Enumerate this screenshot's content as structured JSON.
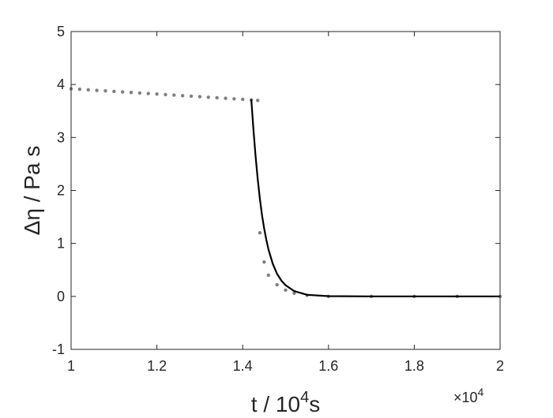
{
  "chart_data": {
    "type": "scatter",
    "xlim": [
      1,
      2
    ],
    "ylim": [
      -1,
      5
    ],
    "x_ticks": [
      "1",
      "1.2",
      "1.4",
      "1.6",
      "1.8",
      "2"
    ],
    "y_ticks": [
      "-1",
      "0",
      "1",
      "2",
      "3",
      "4",
      "5"
    ],
    "x_ticks_values": [
      1,
      1.2,
      1.4,
      1.6,
      1.8,
      2
    ],
    "y_ticks_values": [
      -1,
      0,
      1,
      2,
      3,
      4,
      5
    ],
    "xlabel_parts": {
      "pre": "t / 10",
      "sup": "4",
      "post": "s"
    },
    "ylabel": "Δη / Pa s",
    "x_multiplier": {
      "base": "×10",
      "exp": "4"
    },
    "grid": false,
    "series": [
      {
        "kind": "scatter",
        "color": "#808080",
        "x": [
          1.0,
          1.02,
          1.04,
          1.06,
          1.08,
          1.1,
          1.12,
          1.14,
          1.16,
          1.18,
          1.2,
          1.22,
          1.24,
          1.26,
          1.28,
          1.3,
          1.32,
          1.34,
          1.36,
          1.38,
          1.4,
          1.42,
          1.435,
          1.44,
          1.45,
          1.46,
          1.48,
          1.5,
          1.52,
          1.55,
          1.6,
          1.7,
          1.8,
          1.9,
          2.0
        ],
        "y": [
          3.92,
          3.91,
          3.9,
          3.89,
          3.88,
          3.87,
          3.86,
          3.85,
          3.84,
          3.83,
          3.82,
          3.81,
          3.8,
          3.79,
          3.78,
          3.77,
          3.76,
          3.75,
          3.74,
          3.73,
          3.72,
          3.71,
          3.7,
          1.2,
          0.65,
          0.4,
          0.22,
          0.12,
          0.06,
          0.02,
          0.0,
          0.0,
          0.0,
          0.0,
          0.0
        ]
      },
      {
        "kind": "line",
        "color": "#000000",
        "x": [
          1.42,
          1.425,
          1.43,
          1.435,
          1.44,
          1.445,
          1.45,
          1.455,
          1.46,
          1.47,
          1.48,
          1.49,
          1.5,
          1.52,
          1.55,
          1.6,
          1.7,
          1.8,
          1.9,
          2.0
        ],
        "y": [
          3.72,
          3.15,
          2.65,
          2.22,
          1.85,
          1.54,
          1.29,
          1.07,
          0.89,
          0.62,
          0.43,
          0.3,
          0.21,
          0.1,
          0.03,
          0.005,
          0.0,
          0.0,
          0.0,
          0.0
        ]
      }
    ]
  }
}
